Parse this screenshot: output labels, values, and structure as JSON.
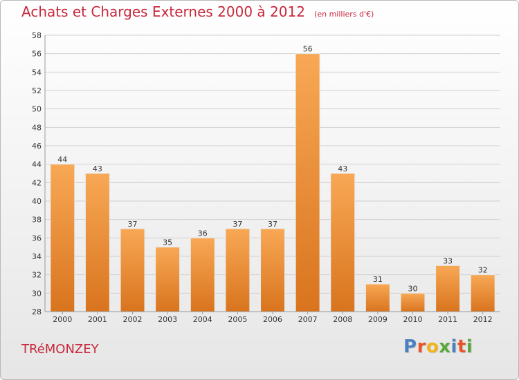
{
  "header": {
    "title": "Achats et Charges Externes 2000 à 2012",
    "unit": "(en milliers d'€)"
  },
  "commune": "TRéMONZEY",
  "logo": {
    "text": "Proxiti",
    "letter_colors": [
      "#4a7fc4",
      "#e8542a",
      "#f0b418",
      "#5aa83c",
      "#4a7fc4",
      "#e8542a",
      "#5aa83c"
    ]
  },
  "colors": {
    "title": "#c8283c",
    "bar_light": "#f8a855",
    "bar_dark": "#d9741e",
    "axis_text": "#333333",
    "grid": "#d0d0d0"
  },
  "chart_data": {
    "type": "bar",
    "title": "Achats et Charges Externes 2000 à 2012",
    "subtitle": "(en milliers d'€)",
    "xlabel": "",
    "ylabel": "",
    "categories": [
      "2000",
      "2001",
      "2002",
      "2003",
      "2004",
      "2005",
      "2006",
      "2007",
      "2008",
      "2009",
      "2010",
      "2011",
      "2012"
    ],
    "values": [
      44,
      43,
      37,
      35,
      36,
      37,
      37,
      56,
      43,
      31,
      30,
      33,
      32
    ],
    "ylim": [
      28,
      58
    ],
    "yticks": [
      28,
      30,
      32,
      34,
      36,
      38,
      40,
      42,
      44,
      46,
      48,
      50,
      52,
      54,
      56,
      58
    ],
    "grid": true,
    "legend": "none"
  }
}
